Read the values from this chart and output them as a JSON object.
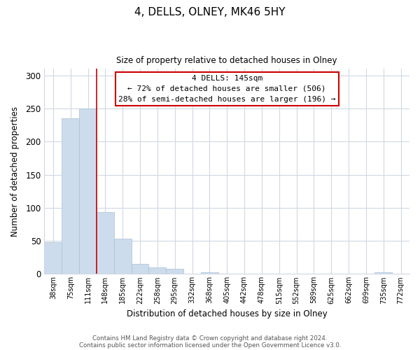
{
  "title": "4, DELLS, OLNEY, MK46 5HY",
  "subtitle": "Size of property relative to detached houses in Olney",
  "xlabel": "Distribution of detached houses by size in Olney",
  "ylabel": "Number of detached properties",
  "bar_labels": [
    "38sqm",
    "75sqm",
    "111sqm",
    "148sqm",
    "185sqm",
    "222sqm",
    "258sqm",
    "295sqm",
    "332sqm",
    "368sqm",
    "405sqm",
    "442sqm",
    "478sqm",
    "515sqm",
    "552sqm",
    "589sqm",
    "625sqm",
    "662sqm",
    "699sqm",
    "735sqm",
    "772sqm"
  ],
  "bar_values": [
    48,
    235,
    250,
    93,
    53,
    15,
    10,
    8,
    0,
    3,
    0,
    0,
    0,
    0,
    0,
    0,
    0,
    0,
    0,
    2,
    0
  ],
  "bar_color": "#cddcec",
  "bar_edge_color": "#a8bfd4",
  "vline_x": 3,
  "vline_color": "#cc0000",
  "annotation_text": "4 DELLS: 145sqm\n← 72% of detached houses are smaller (506)\n28% of semi-detached houses are larger (196) →",
  "ylim": [
    0,
    310
  ],
  "yticks": [
    0,
    50,
    100,
    150,
    200,
    250,
    300
  ],
  "footer_line1": "Contains HM Land Registry data © Crown copyright and database right 2024.",
  "footer_line2": "Contains public sector information licensed under the Open Government Licence v3.0.",
  "bg_color": "#ffffff",
  "grid_color": "#d0d8e4"
}
